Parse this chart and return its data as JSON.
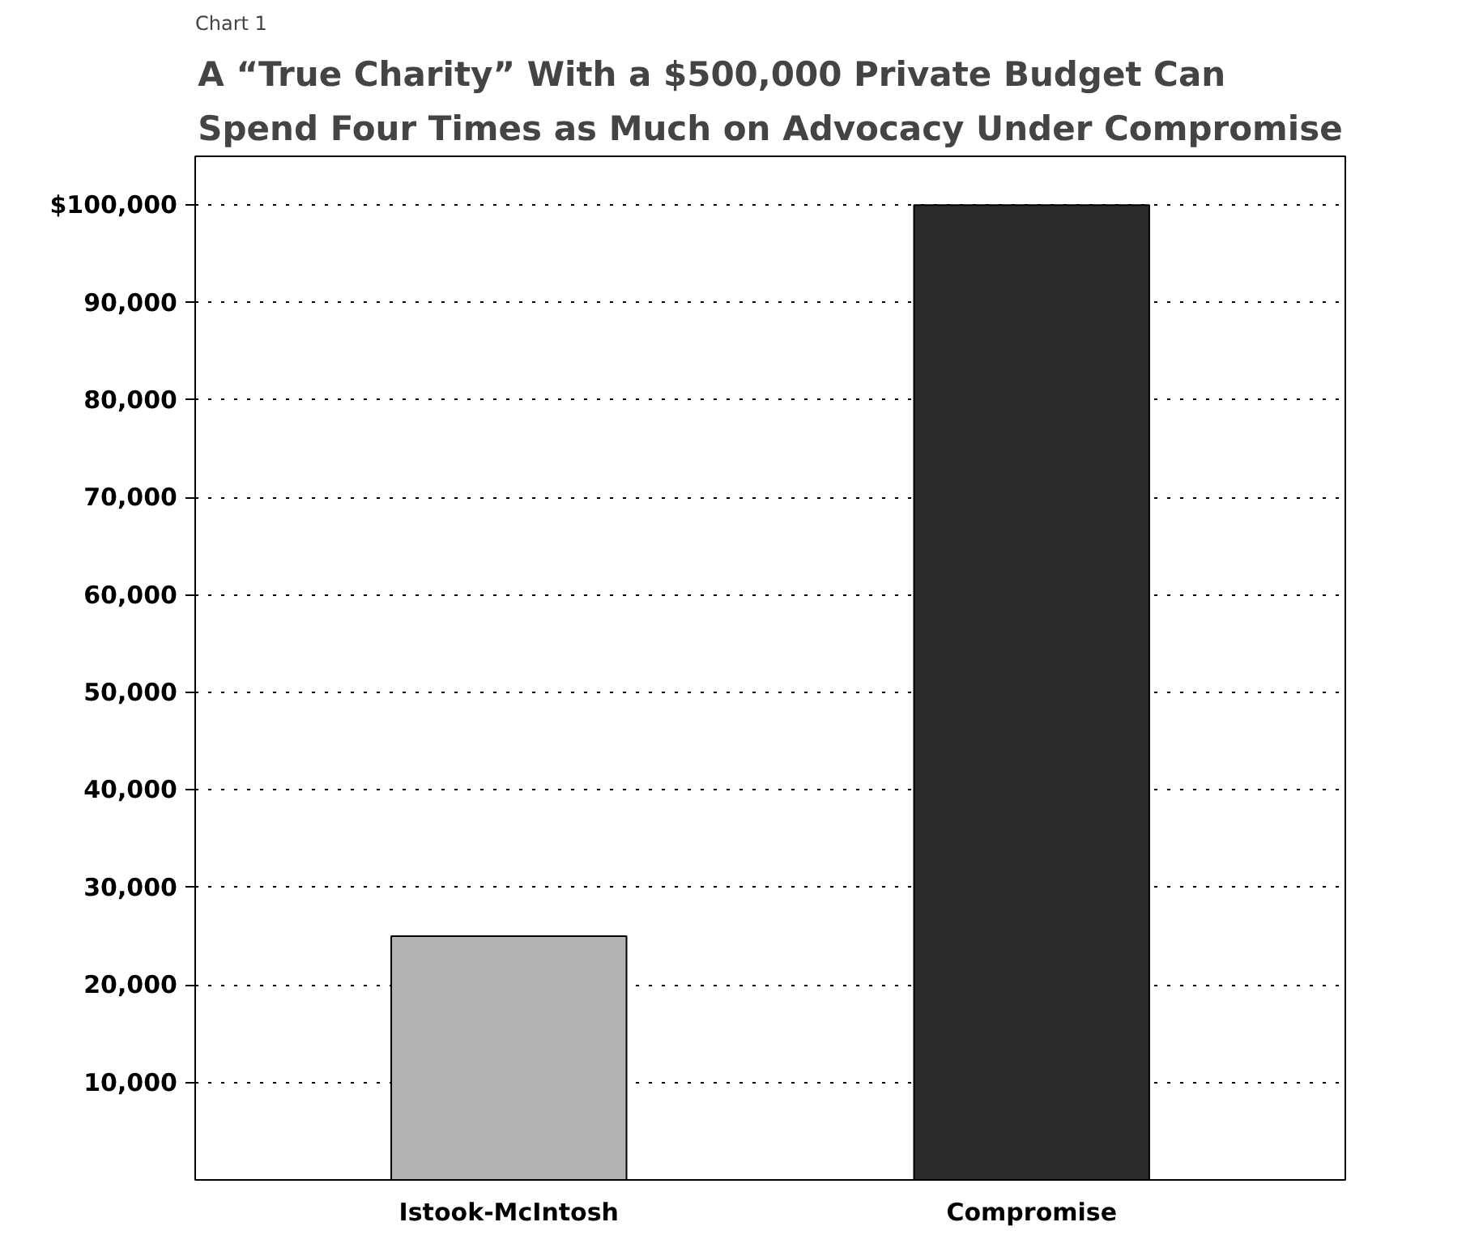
{
  "chart_data": {
    "type": "bar",
    "title": "A “True Charity” With a $500,000 Private Budget Can Spend Four Times as Much on Advocacy Under Compromise",
    "categories": [
      "Istook-McIntosh",
      "Compromise"
    ],
    "colors": [
      "#b4b4b4",
      "#2b2b2b"
    ],
    "values": [
      25000,
      100000
    ],
    "ylim": [
      0,
      105000
    ],
    "yticks": [
      {
        "value": 10000,
        "label": "10,000"
      },
      {
        "value": 20000,
        "label": "20,000"
      },
      {
        "value": 30000,
        "label": "30,000"
      },
      {
        "value": 40000,
        "label": "40,000"
      },
      {
        "value": 50000,
        "label": "50,000"
      },
      {
        "value": 60000,
        "label": "60,000"
      },
      {
        "value": 70000,
        "label": "70,000"
      },
      {
        "value": 80000,
        "label": "80,000"
      },
      {
        "value": 90000,
        "label": "90,000"
      },
      {
        "value": 100000,
        "label": "$100,000"
      }
    ],
    "grid": "y",
    "annotations": [
      "Chart 1"
    ]
  }
}
